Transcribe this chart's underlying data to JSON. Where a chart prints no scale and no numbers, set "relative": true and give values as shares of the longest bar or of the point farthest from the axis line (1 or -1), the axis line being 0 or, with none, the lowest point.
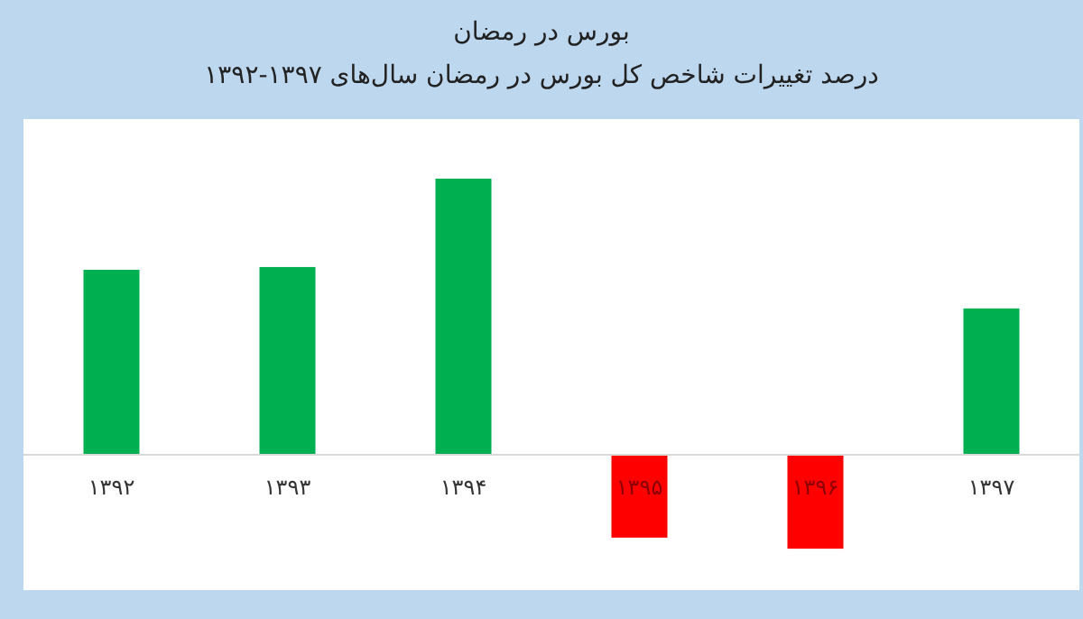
{
  "chart_data": {
    "type": "bar",
    "title": "بورس در رمضان",
    "subtitle": "درصد تغییرات شاخص کل بورس در رمضان سال‌های ۱۳۹۷-۱۳۹۲",
    "relative": true,
    "categories": [
      "۱۳۹۲",
      "۱۳۹۳",
      "۱۳۹۴",
      "۱۳۹۵",
      "۱۳۹۶",
      "۱۳۹۷"
    ],
    "values": [
      0.67,
      0.68,
      1,
      -0.3,
      -0.34,
      0.53
    ],
    "colors": [
      "#00b050",
      "#00b050",
      "#00b050",
      "#ff0000",
      "#ff0000",
      "#00b050"
    ]
  }
}
